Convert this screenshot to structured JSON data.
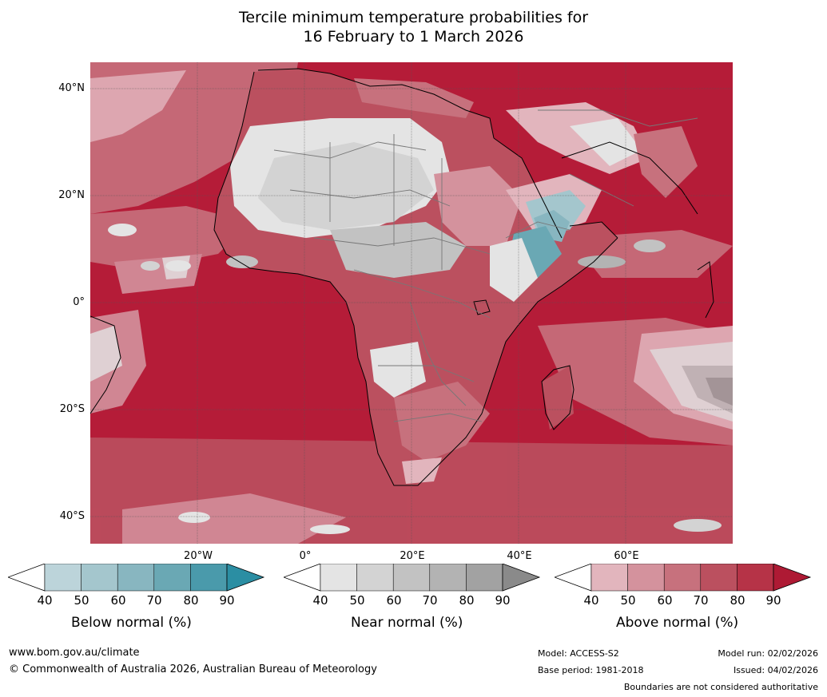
{
  "title": {
    "line1": "Tercile minimum temperature probabilities for",
    "line2": "16 February to 1 March 2026"
  },
  "map": {
    "latitude_labels": [
      "40°N",
      "20°N",
      "0°",
      "20°S",
      "40°S"
    ],
    "longitude_labels": [
      "20°W",
      "0°",
      "20°E",
      "40°E",
      "60°E"
    ]
  },
  "colorbars": [
    {
      "label": "Below normal (%)",
      "ticks": [
        "40",
        "50",
        "60",
        "70",
        "80",
        "90"
      ],
      "colors": [
        "#bcd4da",
        "#a4c6cd",
        "#88b6c0",
        "#6aa8b4",
        "#4a9aab"
      ],
      "extend_color": "#2b8ea3"
    },
    {
      "label": "Near normal (%)",
      "ticks": [
        "40",
        "50",
        "60",
        "70",
        "80",
        "90"
      ],
      "colors": [
        "#e4e4e4",
        "#d3d3d3",
        "#c2c2c2",
        "#b3b3b3",
        "#a2a2a2"
      ],
      "extend_color": "#8a8a8a"
    },
    {
      "label": "Above normal (%)",
      "ticks": [
        "40",
        "50",
        "60",
        "70",
        "80",
        "90"
      ],
      "colors": [
        "#e2b5bd",
        "#d4929d",
        "#c7717d",
        "#bb505f",
        "#b63347"
      ],
      "extend_color": "#ae1a34"
    }
  ],
  "footer": {
    "website": "www.bom.gov.au/climate",
    "copyright": "© Commonwealth of Australia 2026, Australian Bureau of Meteorology",
    "model": "Model: ACCESS-S2",
    "base_period": "Base period: 1981-2018",
    "model_run": "Model run: 02/02/2026",
    "issued": "Issued: 04/02/2026",
    "disclaimer": "Boundaries are not considered authoritative"
  }
}
